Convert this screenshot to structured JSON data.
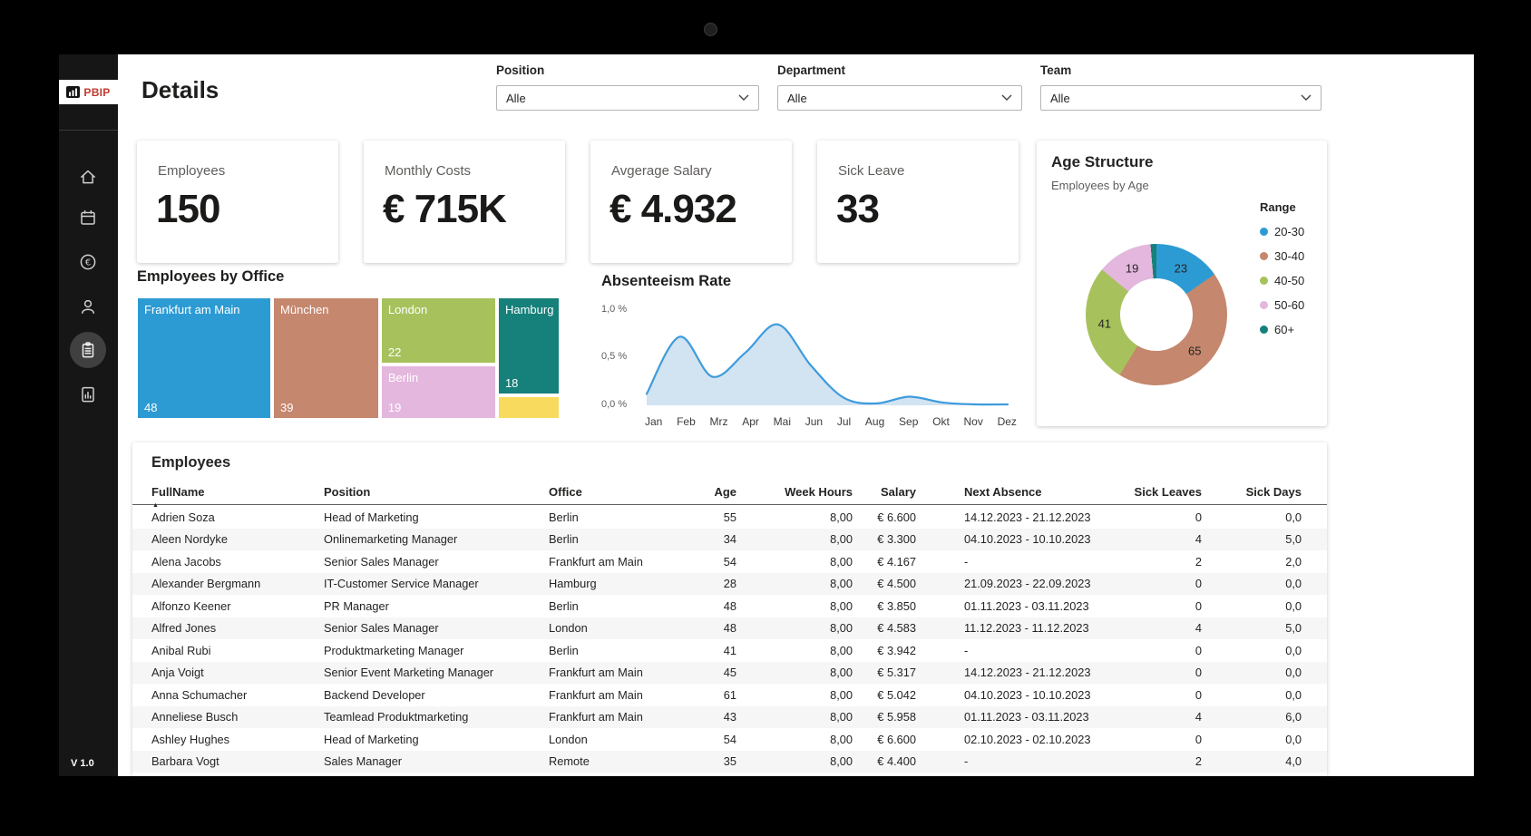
{
  "sidebar": {
    "logo_text": "PBIP",
    "version": "V 1.0",
    "items": [
      {
        "name": "home",
        "active": false
      },
      {
        "name": "calendar",
        "active": false
      },
      {
        "name": "finance",
        "active": false
      },
      {
        "name": "people",
        "active": false
      },
      {
        "name": "details",
        "active": true
      },
      {
        "name": "report",
        "active": false
      }
    ]
  },
  "header": {
    "title": "Details",
    "filters": [
      {
        "label": "Position",
        "value": "Alle"
      },
      {
        "label": "Department",
        "value": "Alle"
      },
      {
        "label": "Team",
        "value": "Alle"
      }
    ]
  },
  "kpis": [
    {
      "label": "Employees",
      "value": "150"
    },
    {
      "label": "Monthly Costs",
      "value": "€ 715K"
    },
    {
      "label": "Avgerage Salary",
      "value": "€ 4.932"
    },
    {
      "label": "Sick Leave",
      "value": "33"
    }
  ],
  "age_structure": {
    "title": "Age Structure",
    "subtitle": "Employees by Age",
    "legend_title": "Range"
  },
  "sections": {
    "treemap_title": "Employees by Office",
    "absenteeism_title": "Absenteeism Rate"
  },
  "table": {
    "title": "Employees",
    "columns": [
      "FullName",
      "Position",
      "Office",
      "Age",
      "Week Hours",
      "Salary",
      "Next Absence",
      "Sick Leaves",
      "Sick Days"
    ],
    "rows": [
      [
        "Adrien Soza",
        "Head of Marketing",
        "Berlin",
        "55",
        "8,00",
        "€ 6.600",
        "14.12.2023 - 21.12.2023",
        "0",
        "0,0"
      ],
      [
        "Aleen Nordyke",
        "Onlinemarketing Manager",
        "Berlin",
        "34",
        "8,00",
        "€ 3.300",
        "04.10.2023 - 10.10.2023",
        "4",
        "5,0"
      ],
      [
        "Alena Jacobs",
        "Senior Sales Manager",
        "Frankfurt am Main",
        "54",
        "8,00",
        "€ 4.167",
        "-",
        "2",
        "2,0"
      ],
      [
        "Alexander Bergmann",
        "IT-Customer Service Manager",
        "Hamburg",
        "28",
        "8,00",
        "€ 4.500",
        "21.09.2023 - 22.09.2023",
        "0",
        "0,0"
      ],
      [
        "Alfonzo Keener",
        "PR Manager",
        "Berlin",
        "48",
        "8,00",
        "€ 3.850",
        "01.11.2023 - 03.11.2023",
        "0",
        "0,0"
      ],
      [
        "Alfred Jones",
        "Senior Sales Manager",
        "London",
        "48",
        "8,00",
        "€ 4.583",
        "11.12.2023 - 11.12.2023",
        "4",
        "5,0"
      ],
      [
        "Anibal Rubi",
        "Produktmarketing Manager",
        "Berlin",
        "41",
        "8,00",
        "€ 3.942",
        "-",
        "0",
        "0,0"
      ],
      [
        "Anja Voigt",
        "Senior Event Marketing Manager",
        "Frankfurt am Main",
        "45",
        "8,00",
        "€ 5.317",
        "14.12.2023 - 21.12.2023",
        "0",
        "0,0"
      ],
      [
        "Anna Schumacher",
        "Backend Developer",
        "Frankfurt am Main",
        "61",
        "8,00",
        "€ 5.042",
        "04.10.2023 - 10.10.2023",
        "0",
        "0,0"
      ],
      [
        "Anneliese Busch",
        "Teamlead Produktmarketing",
        "Frankfurt am Main",
        "43",
        "8,00",
        "€ 5.958",
        "01.11.2023 - 03.11.2023",
        "4",
        "6,0"
      ],
      [
        "Ashley Hughes",
        "Head of Marketing",
        "London",
        "54",
        "8,00",
        "€ 6.600",
        "02.10.2023 - 02.10.2023",
        "0",
        "0,0"
      ],
      [
        "Barbara Vogt",
        "Sales Manager",
        "Remote",
        "35",
        "8,00",
        "€ 4.400",
        "-",
        "2",
        "4,0"
      ]
    ]
  },
  "chart_data": [
    {
      "type": "pie",
      "variant": "donut",
      "title": "Age Structure",
      "subtitle": "Employees by Age",
      "legend_title": "Range",
      "legend_position": "right",
      "slices": [
        {
          "label": "20-30",
          "value": 23,
          "color": "#2d9bd3"
        },
        {
          "label": "30-40",
          "value": 65,
          "color": "#c5876d"
        },
        {
          "label": "40-50",
          "value": 41,
          "color": "#a7c25c"
        },
        {
          "label": "50-60",
          "value": 19,
          "color": "#e4b7de"
        },
        {
          "label": "60+",
          "value": 2,
          "color": "#16807a"
        }
      ]
    },
    {
      "type": "heatmap",
      "variant": "treemap",
      "title": "Employees by Office",
      "blocks": [
        {
          "name": "Frankfurt am Main",
          "value": 48,
          "color": "#2d9bd3"
        },
        {
          "name": "München",
          "value": 39,
          "color": "#c5876d"
        },
        {
          "name": "London",
          "value": 22,
          "color": "#a7c25c"
        },
        {
          "name": "Berlin",
          "value": 19,
          "color": "#e4b7de"
        },
        {
          "name": "Hamburg",
          "value": 18,
          "color": "#16807a"
        },
        {
          "name": "",
          "value": null,
          "color": "#f8da5e"
        }
      ]
    },
    {
      "type": "area",
      "title": "Absenteeism Rate",
      "x": [
        "Jan",
        "Feb",
        "Mrz",
        "Apr",
        "Mai",
        "Jun",
        "Jul",
        "Aug",
        "Sep",
        "Okt",
        "Nov",
        "Dez"
      ],
      "values": [
        0.12,
        0.72,
        0.3,
        0.55,
        0.85,
        0.42,
        0.08,
        0.02,
        0.09,
        0.03,
        0.01,
        0.01
      ],
      "ylim": [
        0,
        1.0
      ],
      "ytick_labels": [
        "1,0 %",
        "0,5 %",
        "0,0 %"
      ],
      "line_color": "#3e9bdc",
      "fill_color": "#d0e1f0",
      "grid": false
    }
  ]
}
